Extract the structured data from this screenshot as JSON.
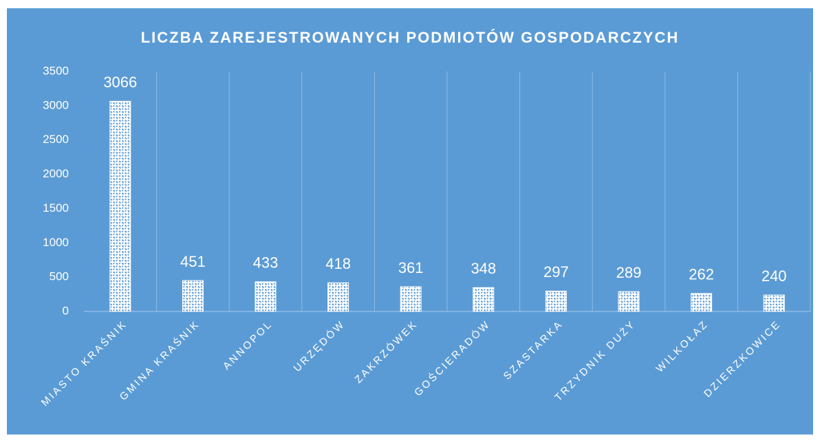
{
  "chart_data": {
    "type": "bar",
    "title": "LICZBA ZAREJESTROWANYCH PODMIOTÓW GOSPODARCZYCH",
    "categories": [
      "MIASTO KRAŚNIK",
      "GMINA KRAŚNIK",
      "ANNOPOL",
      "URZĘDÓW",
      "ZAKRZÓWEK",
      "GOŚCIERADÓW",
      "SZASTARKA",
      "TRZYDNIK DUŻY",
      "WILKOŁAZ",
      "DZIERZKOWICE"
    ],
    "values": [
      3066,
      451,
      433,
      418,
      361,
      348,
      297,
      289,
      262,
      240
    ],
    "color": "#ffffff",
    "background": "#5b9bd5",
    "ylim": [
      0,
      3500
    ],
    "yticks": [
      0,
      500,
      1000,
      1500,
      2000,
      2500,
      3000,
      3500
    ],
    "grid": true
  }
}
